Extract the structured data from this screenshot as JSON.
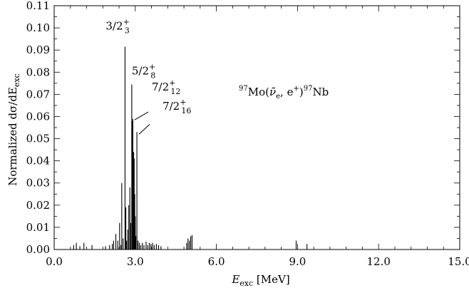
{
  "chart_data": {
    "type": "bar",
    "title": "",
    "xlabel": {
      "main": "E",
      "sub": "exc",
      "unit": " [MeV]"
    },
    "ylabel": {
      "main": "Normalized dσ/dE",
      "sub": "exc"
    },
    "xlim": [
      0.0,
      15.0
    ],
    "ylim": [
      0.0,
      0.11
    ],
    "xticks": [
      0.0,
      3.0,
      6.0,
      9.0,
      12.0,
      15.0
    ],
    "xtick_labels": [
      "0.0",
      "3.0",
      "6.0",
      "9.0",
      "12.0",
      "15.0"
    ],
    "yticks": [
      0.0,
      0.01,
      0.02,
      0.03,
      0.04,
      0.05,
      0.06,
      0.07,
      0.08,
      0.09,
      0.1,
      0.11
    ],
    "ytick_labels": [
      "0.00",
      "0.01",
      "0.02",
      "0.03",
      "0.04",
      "0.05",
      "0.06",
      "0.07",
      "0.08",
      "0.09",
      "0.10",
      "0.11"
    ],
    "grid": false,
    "reaction_label": {
      "pre": "97",
      "main": "Mo(",
      "nu": "ν̄",
      "nu_sub": "e",
      "mid": ", e",
      "sup": "+",
      "close": ")",
      "pre2": "97",
      "end": "Nb"
    },
    "peak_labels": [
      {
        "base": "3/2",
        "sup": "+",
        "sub": "3",
        "x": 2.62,
        "y": 0.0915
      },
      {
        "base": "5/2",
        "sup": "+",
        "sub": "8",
        "x": 2.87,
        "y": 0.0745
      },
      {
        "base": "7/2",
        "sup": "+",
        "sub": "12",
        "x": 2.9,
        "y": 0.0595
      },
      {
        "base": "7/2",
        "sup": "+",
        "sub": "16",
        "x": 3.06,
        "y": 0.053
      }
    ],
    "lines": [
      {
        "x": 0.72,
        "y": 0.002
      },
      {
        "x": 0.82,
        "y": 0.003
      },
      {
        "x": 0.95,
        "y": 0.0015
      },
      {
        "x": 1.1,
        "y": 0.003
      },
      {
        "x": 1.4,
        "y": 0.002
      },
      {
        "x": 1.9,
        "y": 0.0015
      },
      {
        "x": 2.05,
        "y": 0.002
      },
      {
        "x": 2.15,
        "y": 0.0025
      },
      {
        "x": 2.2,
        "y": 0.004
      },
      {
        "x": 2.28,
        "y": 0.007
      },
      {
        "x": 2.35,
        "y": 0.004
      },
      {
        "x": 2.42,
        "y": 0.012
      },
      {
        "x": 2.47,
        "y": 0.002
      },
      {
        "x": 2.5,
        "y": 0.03
      },
      {
        "x": 2.55,
        "y": 0.005
      },
      {
        "x": 2.62,
        "y": 0.0915
      },
      {
        "x": 2.65,
        "y": 0.019
      },
      {
        "x": 2.68,
        "y": 0.004
      },
      {
        "x": 2.72,
        "y": 0.009
      },
      {
        "x": 2.76,
        "y": 0.02
      },
      {
        "x": 2.8,
        "y": 0.028
      },
      {
        "x": 2.83,
        "y": 0.012
      },
      {
        "x": 2.87,
        "y": 0.0745
      },
      {
        "x": 2.89,
        "y": 0.058
      },
      {
        "x": 2.91,
        "y": 0.059
      },
      {
        "x": 2.94,
        "y": 0.044
      },
      {
        "x": 2.96,
        "y": 0.041
      },
      {
        "x": 2.98,
        "y": 0.025
      },
      {
        "x": 3.0,
        "y": 0.015
      },
      {
        "x": 3.02,
        "y": 0.006
      },
      {
        "x": 3.06,
        "y": 0.053
      },
      {
        "x": 3.1,
        "y": 0.004
      },
      {
        "x": 3.15,
        "y": 0.003
      },
      {
        "x": 3.2,
        "y": 0.002
      },
      {
        "x": 3.26,
        "y": 0.003
      },
      {
        "x": 3.32,
        "y": 0.002
      },
      {
        "x": 3.4,
        "y": 0.0035
      },
      {
        "x": 3.46,
        "y": 0.002
      },
      {
        "x": 3.52,
        "y": 0.003
      },
      {
        "x": 3.58,
        "y": 0.0025
      },
      {
        "x": 3.64,
        "y": 0.003
      },
      {
        "x": 3.7,
        "y": 0.002
      },
      {
        "x": 3.78,
        "y": 0.0025
      },
      {
        "x": 3.86,
        "y": 0.002
      },
      {
        "x": 3.95,
        "y": 0.0015
      },
      {
        "x": 4.9,
        "y": 0.003
      },
      {
        "x": 4.95,
        "y": 0.005
      },
      {
        "x": 5.0,
        "y": 0.004
      },
      {
        "x": 5.05,
        "y": 0.006
      },
      {
        "x": 5.1,
        "y": 0.0065
      },
      {
        "x": 8.95,
        "y": 0.004
      },
      {
        "x": 9.35,
        "y": 0.0025
      }
    ]
  }
}
